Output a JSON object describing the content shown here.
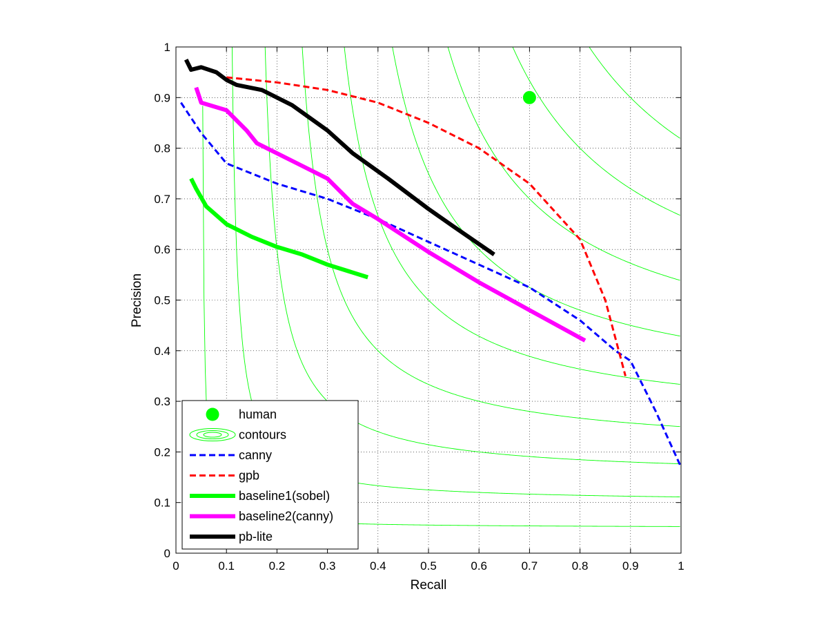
{
  "chart_data": {
    "type": "line",
    "title": "",
    "xlabel": "Recall",
    "ylabel": "Precision",
    "xlim": [
      0,
      1
    ],
    "ylim": [
      0,
      1
    ],
    "grid": true,
    "legend_position": "bottom-left",
    "xticks": [
      "0",
      "0.1",
      "0.2",
      "0.3",
      "0.4",
      "0.5",
      "0.6",
      "0.7",
      "0.8",
      "0.9",
      "1"
    ],
    "yticks": [
      "0",
      "0.1",
      "0.2",
      "0.3",
      "0.4",
      "0.5",
      "0.6",
      "0.7",
      "0.8",
      "0.9",
      "1"
    ],
    "contour_levels": [
      0.1,
      0.2,
      0.3,
      0.4,
      0.5,
      0.6,
      0.7,
      0.8,
      0.9
    ],
    "series": [
      {
        "name": "human",
        "style": "marker",
        "color": "#00ff00",
        "x": [
          0.7
        ],
        "y": [
          0.9
        ]
      },
      {
        "name": "contours",
        "style": "contour",
        "color": "#00ff00"
      },
      {
        "name": "canny",
        "style": "dashed",
        "color": "#0000ff",
        "x": [
          0.01,
          0.05,
          0.1,
          0.2,
          0.3,
          0.4,
          0.5,
          0.6,
          0.7,
          0.8,
          0.87,
          0.9,
          0.95,
          1.0
        ],
        "y": [
          0.89,
          0.83,
          0.77,
          0.73,
          0.7,
          0.66,
          0.615,
          0.57,
          0.525,
          0.46,
          0.4,
          0.38,
          0.28,
          0.17
        ]
      },
      {
        "name": "gpb",
        "style": "dashed",
        "color": "#ff0000",
        "x": [
          0.1,
          0.2,
          0.3,
          0.4,
          0.5,
          0.6,
          0.7,
          0.8,
          0.85,
          0.89
        ],
        "y": [
          0.94,
          0.93,
          0.915,
          0.89,
          0.85,
          0.8,
          0.73,
          0.62,
          0.5,
          0.35
        ]
      },
      {
        "name": "baseline1(sobel)",
        "style": "solid",
        "color": "#00ff00",
        "x": [
          0.03,
          0.04,
          0.06,
          0.1,
          0.15,
          0.2,
          0.25,
          0.3,
          0.38
        ],
        "y": [
          0.74,
          0.72,
          0.685,
          0.65,
          0.625,
          0.605,
          0.59,
          0.57,
          0.545
        ]
      },
      {
        "name": "baseline2(canny)",
        "style": "solid",
        "color": "#ff00ff",
        "x": [
          0.04,
          0.05,
          0.1,
          0.14,
          0.16,
          0.25,
          0.3,
          0.35,
          0.4,
          0.5,
          0.6,
          0.7,
          0.81
        ],
        "y": [
          0.92,
          0.89,
          0.875,
          0.835,
          0.81,
          0.765,
          0.74,
          0.69,
          0.66,
          0.595,
          0.535,
          0.48,
          0.42
        ]
      },
      {
        "name": "pb-lite",
        "style": "solid",
        "color": "#000000",
        "x": [
          0.02,
          0.03,
          0.05,
          0.08,
          0.1,
          0.12,
          0.17,
          0.23,
          0.3,
          0.35,
          0.42,
          0.5,
          0.55,
          0.63
        ],
        "y": [
          0.975,
          0.955,
          0.96,
          0.95,
          0.935,
          0.925,
          0.915,
          0.885,
          0.835,
          0.79,
          0.74,
          0.68,
          0.645,
          0.59
        ]
      }
    ]
  }
}
